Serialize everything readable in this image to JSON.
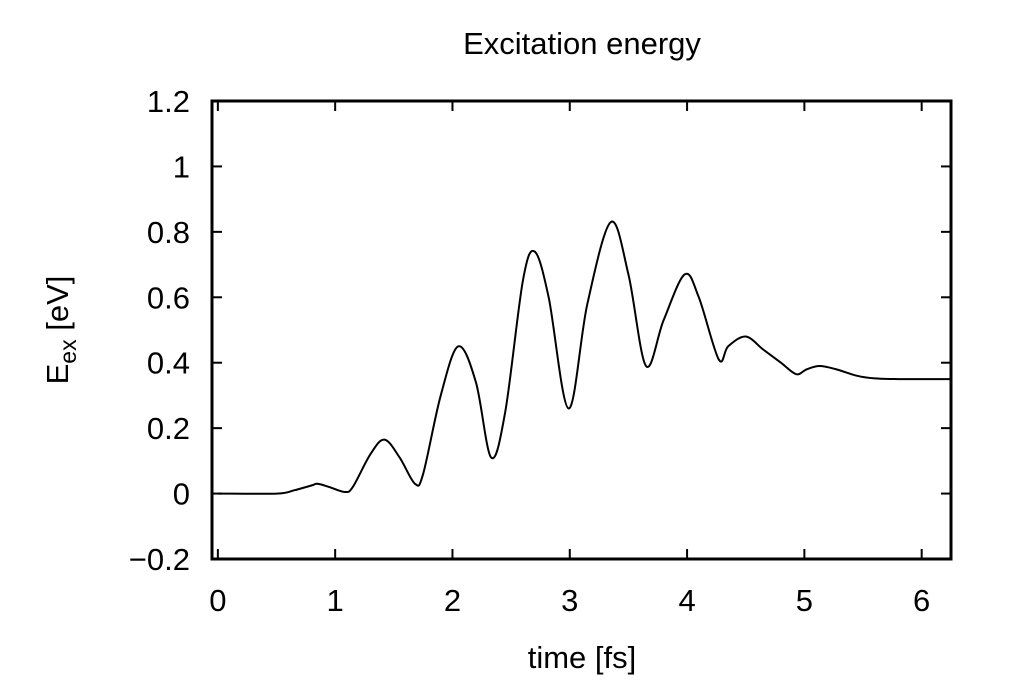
{
  "chart_data": {
    "type": "line",
    "title": "Excitation energy",
    "xlabel": "time [fs]",
    "ylabel": {
      "main": "E",
      "sub": "ex",
      "unit": " [eV]"
    },
    "xlim": [
      -0.05,
      6.25
    ],
    "ylim": [
      -0.2,
      1.2
    ],
    "xticks": [
      0,
      1,
      2,
      3,
      4,
      5,
      6
    ],
    "xtick_labels": [
      "0",
      "1",
      "2",
      "3",
      "4",
      "5",
      "6"
    ],
    "yticks": [
      -0.2,
      0,
      0.2,
      0.4,
      0.6,
      0.8,
      1,
      1.2
    ],
    "ytick_labels": [
      "−0.2",
      "0",
      "0.2",
      "0.4",
      "0.6",
      "0.8",
      "1",
      "1.2"
    ],
    "grid": false,
    "legend": "none",
    "line_color": "#000000",
    "series": [
      {
        "x": [
          0.0,
          0.5,
          0.65,
          0.8,
          0.85,
          0.95,
          1.08,
          1.15,
          1.3,
          1.42,
          1.55,
          1.68,
          1.75,
          1.9,
          2.05,
          2.2,
          2.33,
          2.45,
          2.6,
          2.7,
          2.82,
          2.99,
          3.15,
          3.35,
          3.5,
          3.65,
          3.8,
          3.98,
          4.1,
          4.27,
          4.35,
          4.5,
          4.65,
          4.8,
          4.93,
          5.02,
          5.13,
          5.27,
          5.45,
          5.6,
          5.8,
          6.0,
          6.25
        ],
        "values": [
          0.0,
          0.0,
          0.01,
          0.025,
          0.03,
          0.02,
          0.005,
          0.02,
          0.12,
          0.165,
          0.11,
          0.03,
          0.06,
          0.3,
          0.45,
          0.34,
          0.11,
          0.25,
          0.65,
          0.74,
          0.6,
          0.26,
          0.58,
          0.83,
          0.67,
          0.39,
          0.53,
          0.67,
          0.6,
          0.41,
          0.45,
          0.48,
          0.44,
          0.4,
          0.365,
          0.38,
          0.39,
          0.38,
          0.36,
          0.352,
          0.35,
          0.35,
          0.35
        ]
      }
    ]
  }
}
